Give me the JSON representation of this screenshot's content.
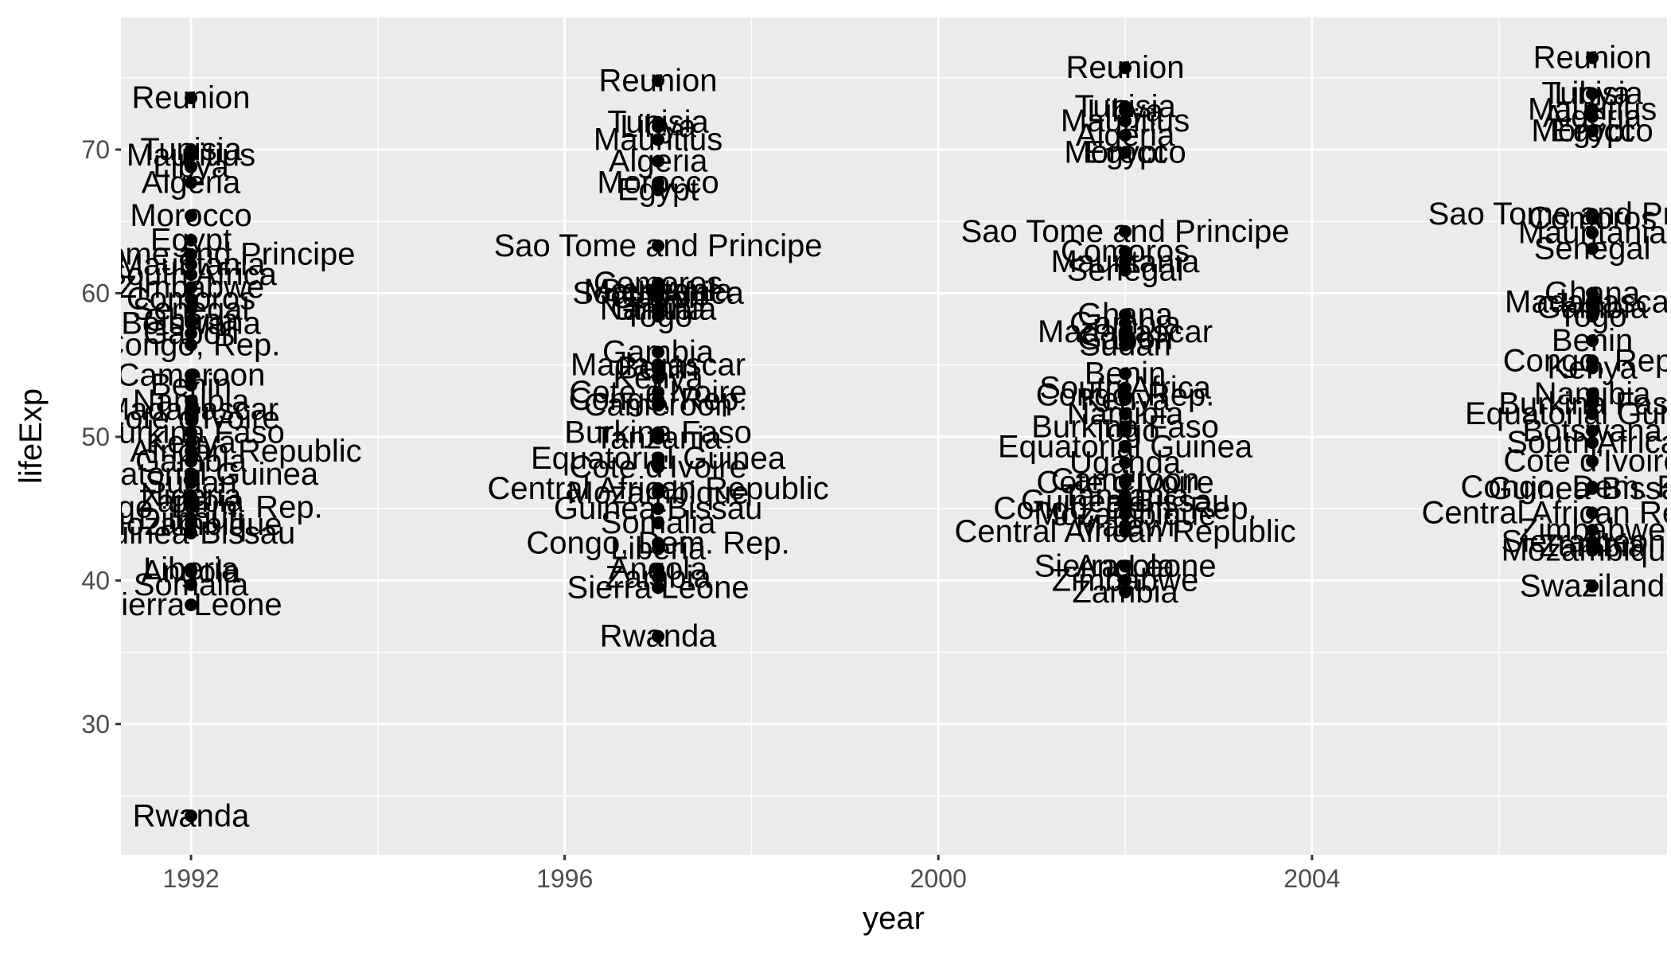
{
  "chart_data": {
    "type": "scatter",
    "title": "",
    "xlabel": "year",
    "ylabel": "lifeExp",
    "xlim": [
      1991.25,
      2007.8
    ],
    "ylim": [
      20.9,
      79.2
    ],
    "x_ticks": [
      1992,
      1996,
      2000,
      2004
    ],
    "y_ticks": [
      30,
      40,
      50,
      60,
      70
    ],
    "grid": true,
    "legend": "none",
    "colors": {
      "panel": "#ebebeb",
      "grid": "#ffffff",
      "point": "#000000",
      "tick_text": "#4d4d4d",
      "title_text": "#000000"
    },
    "points": [
      {
        "year": 1992,
        "lifeExp": 73.6,
        "label": "Reunion"
      },
      {
        "year": 1992,
        "lifeExp": 70.0,
        "label": "Tunisia"
      },
      {
        "year": 1992,
        "lifeExp": 69.6,
        "label": "Mauritius"
      },
      {
        "year": 1992,
        "lifeExp": 68.8,
        "label": "Libya"
      },
      {
        "year": 1992,
        "lifeExp": 67.7,
        "label": "Algeria"
      },
      {
        "year": 1992,
        "lifeExp": 65.4,
        "label": "Morocco"
      },
      {
        "year": 1992,
        "lifeExp": 63.7,
        "label": "Egypt"
      },
      {
        "year": 1992,
        "lifeExp": 62.7,
        "label": "Sao Tome and Principe"
      },
      {
        "year": 1992,
        "lifeExp": 62.0,
        "label": "Mauritania"
      },
      {
        "year": 1992,
        "lifeExp": 61.3,
        "label": "South Africa"
      },
      {
        "year": 1992,
        "lifeExp": 60.4,
        "label": "Zimbabwe"
      },
      {
        "year": 1992,
        "lifeExp": 59.6,
        "label": "Comoros"
      },
      {
        "year": 1992,
        "lifeExp": 58.9,
        "label": "Senegal"
      },
      {
        "year": 1992,
        "lifeExp": 58.1,
        "label": "Ghana"
      },
      {
        "year": 1992,
        "lifeExp": 57.9,
        "label": "Botswana"
      },
      {
        "year": 1992,
        "lifeExp": 57.2,
        "label": "Gabon"
      },
      {
        "year": 1992,
        "lifeExp": 56.4,
        "label": "Congo, Rep."
      },
      {
        "year": 1992,
        "lifeExp": 54.3,
        "label": "Cameroon"
      },
      {
        "year": 1992,
        "lifeExp": 53.6,
        "label": "Benin"
      },
      {
        "year": 1992,
        "lifeExp": 52.5,
        "label": "Namibia"
      },
      {
        "year": 1992,
        "lifeExp": 51.9,
        "label": "Madagascar"
      },
      {
        "year": 1992,
        "lifeExp": 51.3,
        "label": "Cote d'Ivoire"
      },
      {
        "year": 1992,
        "lifeExp": 50.3,
        "label": "Burkina Faso"
      },
      {
        "year": 1992,
        "lifeExp": 49.6,
        "label": "Kenya"
      },
      {
        "year": 1992,
        "lifeExp": 49.0,
        "label": "Central African Republic"
      },
      {
        "year": 1992,
        "lifeExp": 48.3,
        "label": "Gambia"
      },
      {
        "year": 1992,
        "lifeExp": 47.4,
        "label": "Equatorial Guinea"
      },
      {
        "year": 1992,
        "lifeExp": 46.8,
        "label": "Sudan"
      },
      {
        "year": 1992,
        "lifeExp": 45.9,
        "label": "Nigeria"
      },
      {
        "year": 1992,
        "lifeExp": 45.5,
        "label": "Zambia"
      },
      {
        "year": 1992,
        "lifeExp": 45.1,
        "label": "Congo, Dem. Rep."
      },
      {
        "year": 1992,
        "lifeExp": 44.3,
        "label": "Djibouti"
      },
      {
        "year": 1992,
        "lifeExp": 43.9,
        "label": "Mozambique"
      },
      {
        "year": 1992,
        "lifeExp": 43.3,
        "label": "Guinea-Bissau"
      },
      {
        "year": 1992,
        "lifeExp": 40.8,
        "label": "Liberia"
      },
      {
        "year": 1992,
        "lifeExp": 40.6,
        "label": "Angola"
      },
      {
        "year": 1992,
        "lifeExp": 39.7,
        "label": "Somalia"
      },
      {
        "year": 1992,
        "lifeExp": 38.3,
        "label": "Sierra Leone"
      },
      {
        "year": 1992,
        "lifeExp": 23.6,
        "label": "Rwanda"
      },
      {
        "year": 1997,
        "lifeExp": 74.8,
        "label": "Reunion"
      },
      {
        "year": 1997,
        "lifeExp": 71.9,
        "label": "Tunisia"
      },
      {
        "year": 1997,
        "lifeExp": 71.6,
        "label": "Libya"
      },
      {
        "year": 1997,
        "lifeExp": 70.7,
        "label": "Mauritius"
      },
      {
        "year": 1997,
        "lifeExp": 69.2,
        "label": "Algeria"
      },
      {
        "year": 1997,
        "lifeExp": 67.7,
        "label": "Morocco"
      },
      {
        "year": 1997,
        "lifeExp": 67.2,
        "label": "Egypt"
      },
      {
        "year": 1997,
        "lifeExp": 63.3,
        "label": "Sao Tome and Principe"
      },
      {
        "year": 1997,
        "lifeExp": 60.7,
        "label": "Comoros"
      },
      {
        "year": 1997,
        "lifeExp": 60.2,
        "label": "Mauritania"
      },
      {
        "year": 1997,
        "lifeExp": 60.2,
        "label": "Senegal"
      },
      {
        "year": 1997,
        "lifeExp": 60.0,
        "label": "South Africa"
      },
      {
        "year": 1997,
        "lifeExp": 59.7,
        "label": "Gabon"
      },
      {
        "year": 1997,
        "lifeExp": 58.9,
        "label": "Ghana"
      },
      {
        "year": 1997,
        "lifeExp": 58.9,
        "label": "Namibia"
      },
      {
        "year": 1997,
        "lifeExp": 58.4,
        "label": "Togo"
      },
      {
        "year": 1997,
        "lifeExp": 55.9,
        "label": "Gambia"
      },
      {
        "year": 1997,
        "lifeExp": 55.0,
        "label": "Madagascar"
      },
      {
        "year": 1997,
        "lifeExp": 54.8,
        "label": "Benin"
      },
      {
        "year": 1997,
        "lifeExp": 54.1,
        "label": "Kenya"
      },
      {
        "year": 1997,
        "lifeExp": 53.1,
        "label": "Cote d'Ivoire"
      },
      {
        "year": 1997,
        "lifeExp": 52.6,
        "label": "Congo, Rep."
      },
      {
        "year": 1997,
        "lifeExp": 52.2,
        "label": "Cameroon"
      },
      {
        "year": 1997,
        "lifeExp": 50.3,
        "label": "Burkina Faso"
      },
      {
        "year": 1997,
        "lifeExp": 49.9,
        "label": "Tanzania"
      },
      {
        "year": 1997,
        "lifeExp": 48.5,
        "label": "Equatorial Guinea"
      },
      {
        "year": 1997,
        "lifeExp": 47.9,
        "label": "Cote d'Ivoire"
      },
      {
        "year": 1997,
        "lifeExp": 46.4,
        "label": "Central African Republic"
      },
      {
        "year": 1997,
        "lifeExp": 46.1,
        "label": "Mozambique"
      },
      {
        "year": 1997,
        "lifeExp": 45.0,
        "label": "Guinea-Bissau"
      },
      {
        "year": 1997,
        "lifeExp": 44.0,
        "label": "Somalia"
      },
      {
        "year": 1997,
        "lifeExp": 42.6,
        "label": "Congo, Dem. Rep."
      },
      {
        "year": 1997,
        "lifeExp": 42.2,
        "label": "Liberia"
      },
      {
        "year": 1997,
        "lifeExp": 40.8,
        "label": "Angola"
      },
      {
        "year": 1997,
        "lifeExp": 40.2,
        "label": "Zambia"
      },
      {
        "year": 1997,
        "lifeExp": 39.5,
        "label": "Sierra Leone"
      },
      {
        "year": 1997,
        "lifeExp": 36.1,
        "label": "Rwanda"
      },
      {
        "year": 2002,
        "lifeExp": 75.7,
        "label": "Reunion"
      },
      {
        "year": 2002,
        "lifeExp": 73.0,
        "label": "Tunisia"
      },
      {
        "year": 2002,
        "lifeExp": 72.7,
        "label": "Libya"
      },
      {
        "year": 2002,
        "lifeExp": 72.0,
        "label": "Mauritius"
      },
      {
        "year": 2002,
        "lifeExp": 71.0,
        "label": "Algeria"
      },
      {
        "year": 2002,
        "lifeExp": 69.8,
        "label": "Morocco"
      },
      {
        "year": 2002,
        "lifeExp": 69.8,
        "label": "Egypt"
      },
      {
        "year": 2002,
        "lifeExp": 64.3,
        "label": "Sao Tome and Principe"
      },
      {
        "year": 2002,
        "lifeExp": 62.9,
        "label": "Comoros"
      },
      {
        "year": 2002,
        "lifeExp": 62.2,
        "label": "Mauritania"
      },
      {
        "year": 2002,
        "lifeExp": 61.6,
        "label": "Senegal"
      },
      {
        "year": 2002,
        "lifeExp": 58.5,
        "label": "Ghana"
      },
      {
        "year": 2002,
        "lifeExp": 57.9,
        "label": "Gambia"
      },
      {
        "year": 2002,
        "lifeExp": 57.3,
        "label": "Madagascar"
      },
      {
        "year": 2002,
        "lifeExp": 56.8,
        "label": "Gabon"
      },
      {
        "year": 2002,
        "lifeExp": 56.4,
        "label": "Sudan"
      },
      {
        "year": 2002,
        "lifeExp": 54.4,
        "label": "Benin"
      },
      {
        "year": 2002,
        "lifeExp": 53.4,
        "label": "South Africa"
      },
      {
        "year": 2002,
        "lifeExp": 52.9,
        "label": "Congo, Rep."
      },
      {
        "year": 2002,
        "lifeExp": 52.6,
        "label": "Kenya"
      },
      {
        "year": 2002,
        "lifeExp": 51.6,
        "label": "Namibia"
      },
      {
        "year": 2002,
        "lifeExp": 50.7,
        "label": "Burkina Faso"
      },
      {
        "year": 2002,
        "lifeExp": 50.4,
        "label": "Togo"
      },
      {
        "year": 2002,
        "lifeExp": 49.3,
        "label": "Equatorial Guinea"
      },
      {
        "year": 2002,
        "lifeExp": 48.2,
        "label": "Uganda"
      },
      {
        "year": 2002,
        "lifeExp": 47.0,
        "label": "Cameroon"
      },
      {
        "year": 2002,
        "lifeExp": 46.8,
        "label": "Cote d'Ivoire"
      },
      {
        "year": 2002,
        "lifeExp": 45.9,
        "label": "Tanzania"
      },
      {
        "year": 2002,
        "lifeExp": 45.5,
        "label": "Guinea-Bissau"
      },
      {
        "year": 2002,
        "lifeExp": 45.0,
        "label": "Congo, Dem. Rep."
      },
      {
        "year": 2002,
        "lifeExp": 44.6,
        "label": "Mozambique"
      },
      {
        "year": 2002,
        "lifeExp": 43.8,
        "label": "Malawi"
      },
      {
        "year": 2002,
        "lifeExp": 43.4,
        "label": "Central African Republic"
      },
      {
        "year": 2002,
        "lifeExp": 41.0,
        "label": "Sierra Leone"
      },
      {
        "year": 2002,
        "lifeExp": 41.0,
        "label": "Angola"
      },
      {
        "year": 2002,
        "lifeExp": 40.0,
        "label": "Zimbabwe"
      },
      {
        "year": 2002,
        "lifeExp": 39.2,
        "label": "Zambia"
      },
      {
        "year": 2007,
        "lifeExp": 76.4,
        "label": "Reunion"
      },
      {
        "year": 2007,
        "lifeExp": 73.9,
        "label": "Tunisia"
      },
      {
        "year": 2007,
        "lifeExp": 73.9,
        "label": "Libya"
      },
      {
        "year": 2007,
        "lifeExp": 72.8,
        "label": "Mauritius"
      },
      {
        "year": 2007,
        "lifeExp": 72.3,
        "label": "Algeria"
      },
      {
        "year": 2007,
        "lifeExp": 71.3,
        "label": "Morocco"
      },
      {
        "year": 2007,
        "lifeExp": 71.3,
        "label": "Egypt"
      },
      {
        "year": 2007,
        "lifeExp": 65.5,
        "label": "Sao Tome and Principe"
      },
      {
        "year": 2007,
        "lifeExp": 65.2,
        "label": "Comoros"
      },
      {
        "year": 2007,
        "lifeExp": 64.2,
        "label": "Mauritania"
      },
      {
        "year": 2007,
        "lifeExp": 63.1,
        "label": "Senegal"
      },
      {
        "year": 2007,
        "lifeExp": 60.0,
        "label": "Ghana"
      },
      {
        "year": 2007,
        "lifeExp": 59.4,
        "label": "Madagascar"
      },
      {
        "year": 2007,
        "lifeExp": 59.0,
        "label": "Gambia"
      },
      {
        "year": 2007,
        "lifeExp": 58.4,
        "label": "Togo"
      },
      {
        "year": 2007,
        "lifeExp": 56.7,
        "label": "Benin"
      },
      {
        "year": 2007,
        "lifeExp": 55.3,
        "label": "Congo, Rep."
      },
      {
        "year": 2007,
        "lifeExp": 54.8,
        "label": "Kenya"
      },
      {
        "year": 2007,
        "lifeExp": 53.0,
        "label": "Namibia"
      },
      {
        "year": 2007,
        "lifeExp": 52.3,
        "label": "Burkina Faso"
      },
      {
        "year": 2007,
        "lifeExp": 51.6,
        "label": "Equatorial Guinea"
      },
      {
        "year": 2007,
        "lifeExp": 50.4,
        "label": "Botswana"
      },
      {
        "year": 2007,
        "lifeExp": 49.6,
        "label": "South Africa"
      },
      {
        "year": 2007,
        "lifeExp": 48.3,
        "label": "Cote d'Ivoire"
      },
      {
        "year": 2007,
        "lifeExp": 46.5,
        "label": "Congo, Dem. Rep."
      },
      {
        "year": 2007,
        "lifeExp": 46.4,
        "label": "Guinea-Bissau"
      },
      {
        "year": 2007,
        "lifeExp": 44.7,
        "label": "Central African Republic"
      },
      {
        "year": 2007,
        "lifeExp": 43.5,
        "label": "Zimbabwe"
      },
      {
        "year": 2007,
        "lifeExp": 42.7,
        "label": "Sierra Leone"
      },
      {
        "year": 2007,
        "lifeExp": 42.4,
        "label": "Zambia"
      },
      {
        "year": 2007,
        "lifeExp": 42.1,
        "label": "Mozambique"
      },
      {
        "year": 2007,
        "lifeExp": 39.6,
        "label": "Swaziland"
      }
    ]
  }
}
